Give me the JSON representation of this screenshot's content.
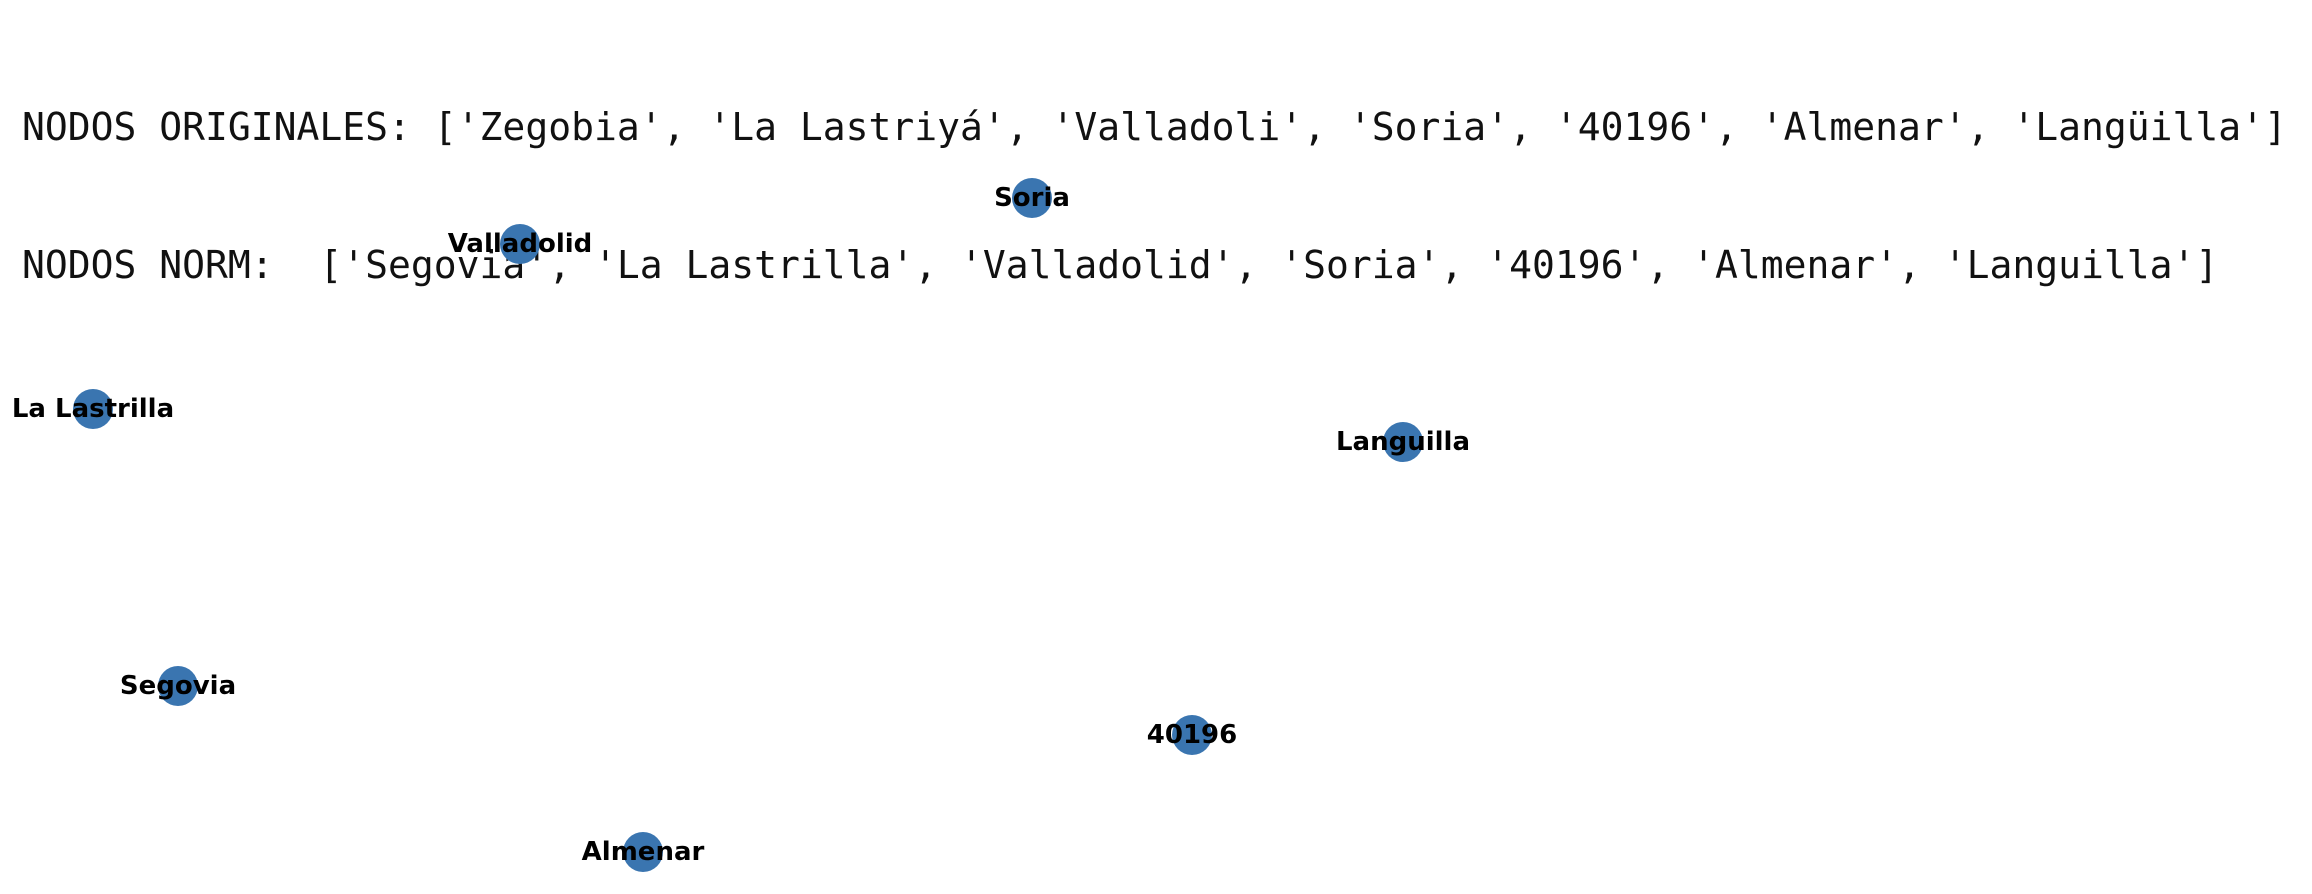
{
  "output": {
    "line1": "NODOS ORIGINALES: ['Zegobia', 'La Lastriyá', 'Valladoli', 'Soria', '40196', 'Almenar', 'Langüilla']",
    "line2": "NODOS NORM:  ['Segovia', 'La Lastrilla', 'Valladolid', 'Soria', '40196', 'Almenar', 'Languilla']"
  },
  "graph": {
    "node_color": "#3a75b0",
    "nodes": [
      {
        "label": "Soria"
      },
      {
        "label": "Valladolid"
      },
      {
        "label": "La Lastrilla"
      },
      {
        "label": "Languilla"
      },
      {
        "label": "Segovia"
      },
      {
        "label": "40196"
      },
      {
        "label": "Almenar"
      }
    ]
  }
}
